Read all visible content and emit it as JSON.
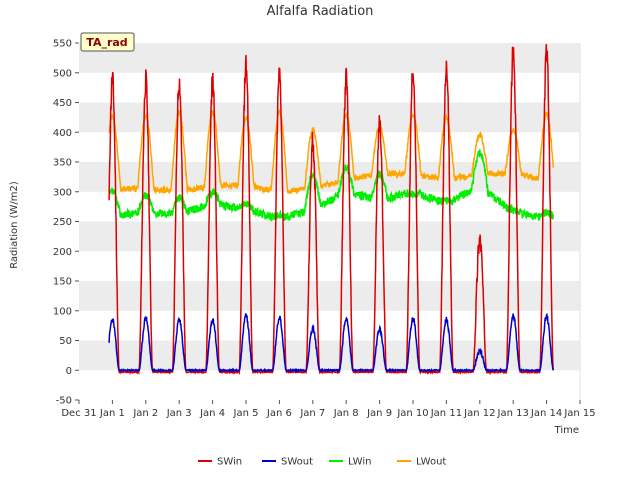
{
  "chart_data": {
    "type": "line",
    "title": "Alfalfa Radiation",
    "xlabel": "Time",
    "ylabel": "Radiation (W/m2)",
    "ylim": [
      -50,
      550
    ],
    "yticks": [
      -50,
      0,
      50,
      100,
      150,
      200,
      250,
      300,
      350,
      400,
      450,
      500,
      550
    ],
    "xlim": [
      0,
      15
    ],
    "xticks": [
      0,
      1,
      2,
      3,
      4,
      5,
      6,
      7,
      8,
      9,
      10,
      11,
      12,
      13,
      14,
      15
    ],
    "xtick_labels": [
      "Dec 31",
      "Jan 1",
      "Jan 2",
      "Jan 3",
      "Jan 4",
      "Jan 5",
      "Jan 6",
      "Jan 7",
      "Jan 8",
      "Jan 9",
      "Jan 10",
      "Jan 11",
      "Jan 12",
      "Jan 13",
      "Jan 14",
      "Jan 15"
    ],
    "annotation": "TA_rad",
    "grid_bands": true,
    "legend_position": "bottom-center",
    "series": [
      {
        "name": "SWin",
        "color": "#dd0000",
        "daily_peak": [
          490,
          487,
          487,
          487,
          515,
          498,
          385,
          490,
          420,
          505,
          505,
          222,
          535,
          535
        ],
        "night_value": -3
      },
      {
        "name": "SWout",
        "color": "#0000cc",
        "daily_peak": [
          85,
          88,
          85,
          86,
          93,
          89,
          70,
          88,
          70,
          87,
          85,
          32,
          91,
          91
        ],
        "night_value": 0
      },
      {
        "name": "LWin",
        "color": "#00ee00",
        "day_start": [
          260,
          265,
          262,
          280,
          270,
          255,
          270,
          300,
          285,
          300,
          280,
          310,
          265,
          255,
          255
        ],
        "day_peak": [
          300,
          295,
          290,
          300,
          280,
          260,
          330,
          340,
          330,
          295,
          285,
          365,
          270,
          265,
          260
        ]
      },
      {
        "name": "LWout",
        "color": "#ffa500",
        "day_start": [
          305,
          305,
          300,
          310,
          310,
          300,
          305,
          320,
          330,
          330,
          320,
          330,
          330,
          320,
          300
        ],
        "day_peak": [
          428,
          428,
          435,
          435,
          425,
          435,
          405,
          430,
          410,
          430,
          425,
          395,
          405,
          430,
          430
        ]
      }
    ]
  }
}
